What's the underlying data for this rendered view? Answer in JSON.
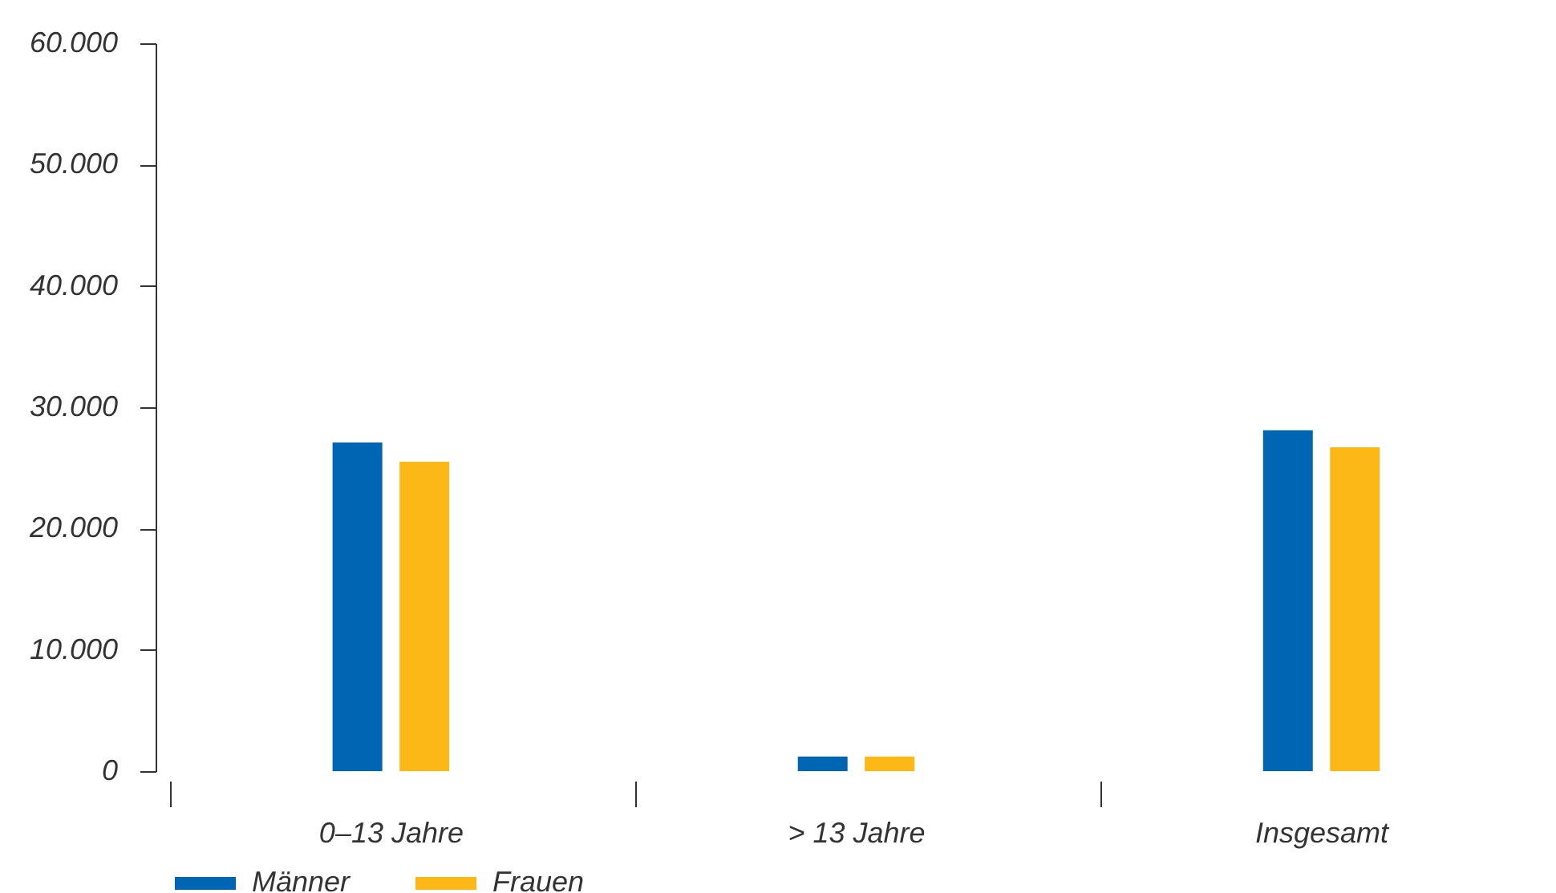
{
  "chart_data": {
    "type": "bar",
    "categories": [
      "0–13 Jahre",
      "> 13 Jahre",
      "Insgesamt"
    ],
    "series": [
      {
        "name": "Männer",
        "color": "#0066b3",
        "values": [
          27100,
          1200,
          28100
        ]
      },
      {
        "name": "Frauen",
        "color": "#fbb817",
        "values": [
          25500,
          1200,
          26700
        ]
      }
    ],
    "ylim": [
      0,
      60000
    ],
    "yticks": [
      {
        "value": 0,
        "label": "0"
      },
      {
        "value": 10000,
        "label": "10.000"
      },
      {
        "value": 20000,
        "label": "20.000"
      },
      {
        "value": 30000,
        "label": "30.000"
      },
      {
        "value": 40000,
        "label": "40.000"
      },
      {
        "value": 50000,
        "label": "50.000"
      },
      {
        "value": 60000,
        "label": "60.000"
      }
    ],
    "grid": false,
    "legend": "bottom left"
  }
}
